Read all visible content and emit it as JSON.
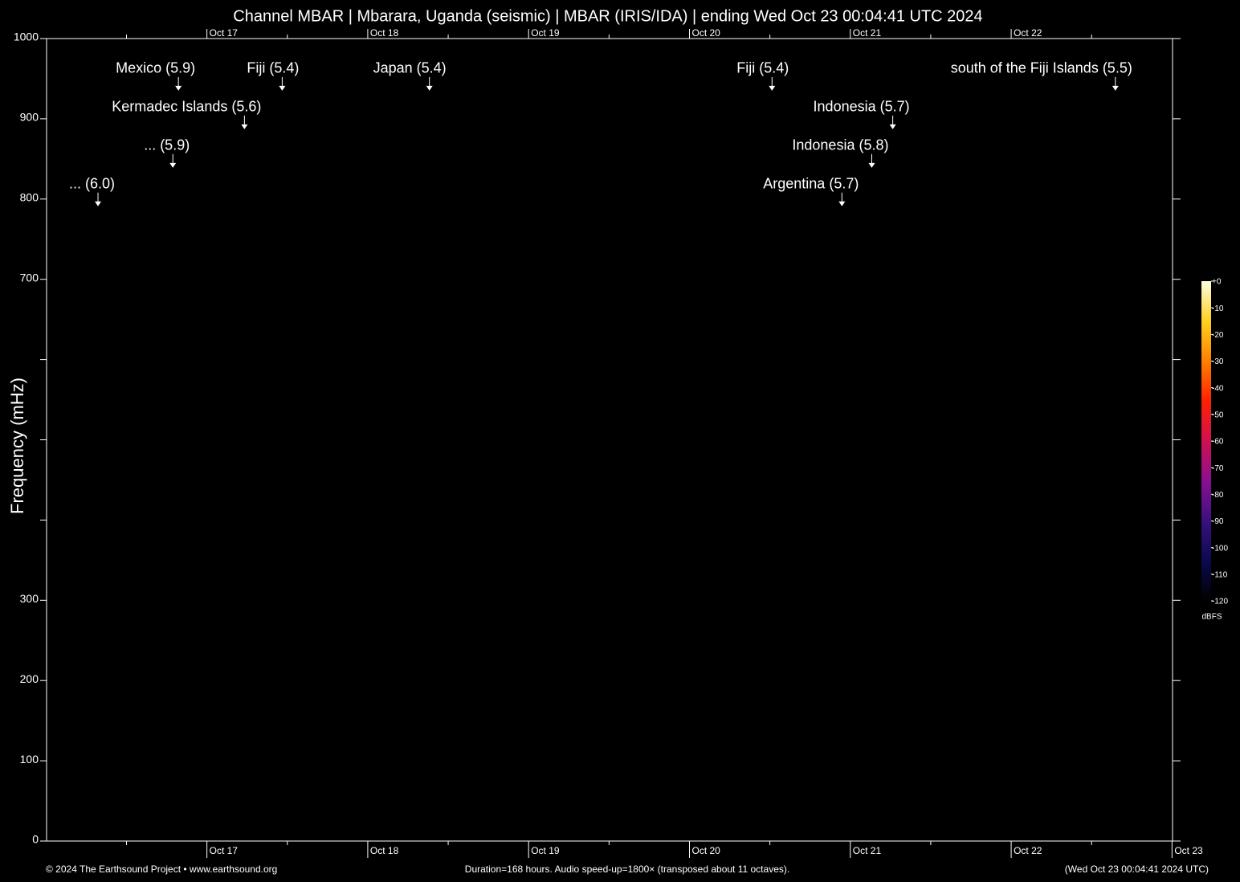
{
  "chart_data": {
    "type": "spectrogram",
    "title": "Channel MBAR | Mbarara, Uganda (seismic) | MBAR (IRIS/IDA) | ending Wed Oct 23 00:04:41 UTC 2024",
    "ylabel": "Frequency (mHz)",
    "ylim": [
      0,
      1000
    ],
    "yticks": [
      0,
      100,
      200,
      300,
      700,
      800,
      900,
      1000
    ],
    "yticks_minor": [
      400,
      500,
      600
    ],
    "xlim": [
      "2024-10-16T00:04:41",
      "2024-10-23T00:04:41"
    ],
    "xticks": [
      {
        "value": "2024-10-17T00:00:00",
        "label": "Oct 17"
      },
      {
        "value": "2024-10-18T00:00:00",
        "label": "Oct 18"
      },
      {
        "value": "2024-10-19T00:00:00",
        "label": "Oct 19"
      },
      {
        "value": "2024-10-20T00:00:00",
        "label": "Oct 20"
      },
      {
        "value": "2024-10-21T00:00:00",
        "label": "Oct 21"
      },
      {
        "value": "2024-10-22T00:00:00",
        "label": "Oct 22"
      },
      {
        "value": "2024-10-23T00:00:00",
        "label": "Oct 23"
      }
    ],
    "xticks_minor": [
      "2024-10-16T12:00:00",
      "2024-10-17T12:00:00",
      "2024-10-18T12:00:00",
      "2024-10-19T12:00:00",
      "2024-10-20T12:00:00",
      "2024-10-21T12:00:00",
      "2024-10-22T12:00:00"
    ],
    "events": [
      {
        "label": "... (6.0)",
        "x": "2024-10-16T07:45:00",
        "y": 791
      },
      {
        "label": "... (5.9)",
        "x": "2024-10-16T18:55:00",
        "y": 839
      },
      {
        "label": "Mexico (5.9)",
        "x": "2024-10-16T19:45:00",
        "y": 935
      },
      {
        "label": "Kermadec Islands (5.6)",
        "x": "2024-10-17T05:36:00",
        "y": 887
      },
      {
        "label": "Fiji (5.4)",
        "x": "2024-10-17T11:14:00",
        "y": 935
      },
      {
        "label": "Japan (5.4)",
        "x": "2024-10-18T09:12:00",
        "y": 935
      },
      {
        "label": "Fiji (5.4)",
        "x": "2024-10-20T12:19:00",
        "y": 935
      },
      {
        "label": "Argentina (5.7)",
        "x": "2024-10-20T22:45:00",
        "y": 791
      },
      {
        "label": "Indonesia (5.8)",
        "x": "2024-10-21T03:12:00",
        "y": 839
      },
      {
        "label": "Indonesia (5.7)",
        "x": "2024-10-21T06:20:00",
        "y": 887
      },
      {
        "label": "south of the Fiji Islands (5.5)",
        "x": "2024-10-22T15:33:00",
        "y": 935
      }
    ],
    "colorbar": {
      "label": "dBFS",
      "lim": [
        -120,
        0
      ],
      "ticks": [
        {
          "value": 0,
          "label": "+0"
        },
        -10,
        -20,
        -30,
        -40,
        -50,
        -60,
        -70,
        -80,
        -90,
        -100,
        -110,
        -120
      ],
      "colormap": [
        "#000000",
        "#0a0a50",
        "#3a1080",
        "#8a1090",
        "#d01050",
        "#ff2000",
        "#ff8000",
        "#ffd020",
        "#ffffe0"
      ]
    },
    "footer": {
      "left": "© 2024 The Earthsound Project • www.earthsound.org",
      "center": "Duration=168 hours. Audio speed-up=1800× (transposed about 11 octaves).",
      "right": "(Wed Oct 23 00:04:41 2024 UTC)"
    }
  }
}
